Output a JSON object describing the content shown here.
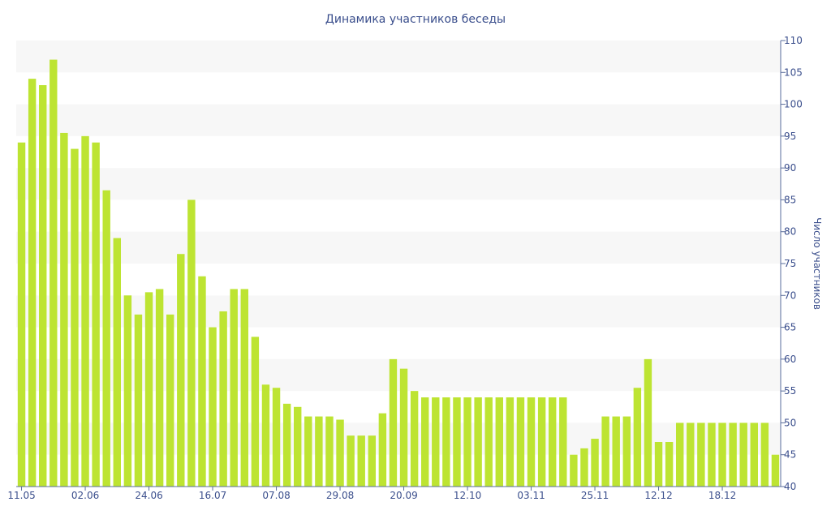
{
  "chart_data": {
    "type": "bar",
    "title": "Динамика участников беседы",
    "xlabel": "",
    "ylabel": "Число участников",
    "ylim": [
      40,
      110
    ],
    "yticks": [
      40,
      45,
      50,
      55,
      60,
      65,
      70,
      75,
      80,
      85,
      90,
      95,
      100,
      105,
      110
    ],
    "y_axis_side": "right",
    "grid": "alternating horizontal bands",
    "bar_color": "#bde432",
    "band_color": "#f7f7f7",
    "text_color": "#3a4e8c",
    "xtick_labels": [
      {
        "index": 0,
        "label": "11.05"
      },
      {
        "index": 6,
        "label": "02.06"
      },
      {
        "index": 12,
        "label": "24.06"
      },
      {
        "index": 18,
        "label": "16.07"
      },
      {
        "index": 24,
        "label": "07.08"
      },
      {
        "index": 30,
        "label": "29.08"
      },
      {
        "index": 36,
        "label": "20.09"
      },
      {
        "index": 42,
        "label": "12.10"
      },
      {
        "index": 48,
        "label": "03.11"
      },
      {
        "index": 54,
        "label": "25.11"
      },
      {
        "index": 60,
        "label": "12.12"
      },
      {
        "index": 66,
        "label": "18.12"
      }
    ],
    "values": [
      94,
      104,
      103,
      107,
      95.5,
      93,
      95,
      94,
      86.5,
      79,
      70,
      67,
      70.5,
      71,
      67,
      76.5,
      85,
      73,
      65,
      67.5,
      71,
      71,
      63.5,
      56,
      55.5,
      53,
      52.5,
      51,
      51,
      51,
      50.5,
      48,
      48,
      48,
      51.5,
      60,
      58.5,
      55,
      54,
      54,
      54,
      54,
      54,
      54,
      54,
      54,
      54,
      54,
      54,
      54,
      54,
      54,
      45,
      46,
      47.5,
      51,
      51,
      51,
      55.5,
      60,
      47,
      47,
      50,
      50,
      50,
      50,
      50,
      50,
      50,
      50,
      50,
      45
    ]
  }
}
